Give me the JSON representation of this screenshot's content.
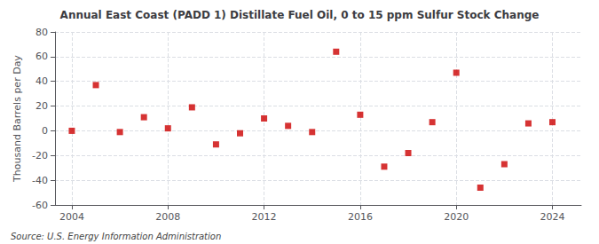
{
  "chart_data": {
    "type": "scatter",
    "title": "Annual East Coast (PADD 1) Distillate Fuel Oil, 0 to 15 ppm Sulfur Stock Change",
    "ylabel": "Thousand Barrels per Day",
    "annotations": [
      "Source: U.S. Energy Information Administration"
    ],
    "x": [
      2004,
      2005,
      2006,
      2007,
      2008,
      2009,
      2010,
      2011,
      2012,
      2013,
      2014,
      2015,
      2016,
      2017,
      2018,
      2019,
      2020,
      2021,
      2022,
      2023,
      2024
    ],
    "values": [
      0,
      37,
      -1,
      11,
      2,
      19,
      -11,
      -2,
      10,
      4,
      -1,
      64,
      13,
      -29,
      -18,
      7,
      47,
      -46,
      -27,
      6,
      7
    ],
    "color": "#cc0000",
    "marker": "square",
    "xlim": [
      2003.3,
      2025.2
    ],
    "xticks": [
      2004,
      2008,
      2012,
      2016,
      2020,
      2024
    ],
    "ylim": [
      -60,
      80
    ],
    "yticks": [
      -60,
      -40,
      -20,
      0,
      20,
      40,
      60,
      80
    ],
    "grid": true
  }
}
